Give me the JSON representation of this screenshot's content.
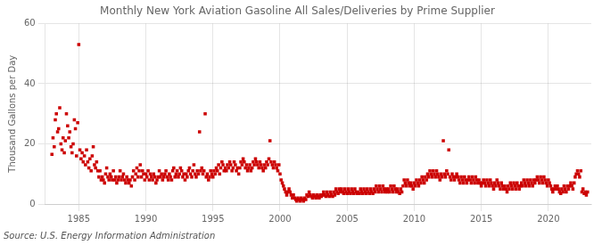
{
  "chart_data": {
    "type": "scatter",
    "title": "Monthly New York Aviation Gasoline All Sales/Deliveries by Prime Supplier",
    "y_label": "Thousand Gallons per Day",
    "annotation": "Source: U.S. Energy Information Administration",
    "color": "#cc0000",
    "marker": "square",
    "grid": true,
    "xlim": [
      1982.5,
      2023.2
    ],
    "ylim": [
      0,
      60
    ],
    "xticks": [
      1985,
      1990,
      1995,
      2000,
      2005,
      2010,
      2015,
      2020
    ],
    "yticks": [
      0,
      20,
      40,
      60
    ],
    "x": [
      1983.0,
      1983.08,
      1983.17,
      1983.25,
      1983.33,
      1983.42,
      1983.5,
      1983.58,
      1983.67,
      1983.75,
      1983.83,
      1983.92,
      1984.0,
      1984.08,
      1984.17,
      1984.25,
      1984.33,
      1984.42,
      1984.5,
      1984.58,
      1984.67,
      1984.75,
      1984.83,
      1984.92,
      1985.0,
      1985.08,
      1985.17,
      1985.25,
      1985.33,
      1985.42,
      1985.5,
      1985.58,
      1985.67,
      1985.75,
      1985.83,
      1985.92,
      1986.0,
      1986.08,
      1986.17,
      1986.25,
      1986.33,
      1986.42,
      1986.5,
      1986.58,
      1986.67,
      1986.75,
      1986.83,
      1986.92,
      1987.0,
      1987.08,
      1987.17,
      1987.25,
      1987.33,
      1987.42,
      1987.5,
      1987.58,
      1987.67,
      1987.75,
      1987.83,
      1987.92,
      1988.0,
      1988.08,
      1988.17,
      1988.25,
      1988.33,
      1988.42,
      1988.5,
      1988.58,
      1988.67,
      1988.75,
      1988.83,
      1988.92,
      1989.0,
      1989.08,
      1989.17,
      1989.25,
      1989.33,
      1989.42,
      1989.5,
      1989.58,
      1989.67,
      1989.75,
      1989.83,
      1989.92,
      1990.0,
      1990.08,
      1990.17,
      1990.25,
      1990.33,
      1990.42,
      1990.5,
      1990.58,
      1990.67,
      1990.75,
      1990.83,
      1990.92,
      1991.0,
      1991.08,
      1991.17,
      1991.25,
      1991.33,
      1991.42,
      1991.5,
      1991.58,
      1991.67,
      1991.75,
      1991.83,
      1991.92,
      1992.0,
      1992.08,
      1992.17,
      1992.25,
      1992.33,
      1992.42,
      1992.5,
      1992.58,
      1992.67,
      1992.75,
      1992.83,
      1992.92,
      1993.0,
      1993.08,
      1993.17,
      1993.25,
      1993.33,
      1993.42,
      1993.5,
      1993.58,
      1993.67,
      1993.75,
      1993.83,
      1993.92,
      1994.0,
      1994.08,
      1994.17,
      1994.25,
      1994.33,
      1994.42,
      1994.5,
      1994.58,
      1994.67,
      1994.75,
      1994.83,
      1994.92,
      1995.0,
      1995.08,
      1995.17,
      1995.25,
      1995.33,
      1995.42,
      1995.5,
      1995.58,
      1995.67,
      1995.75,
      1995.83,
      1995.92,
      1996.0,
      1996.08,
      1996.17,
      1996.25,
      1996.33,
      1996.42,
      1996.5,
      1996.58,
      1996.67,
      1996.75,
      1996.83,
      1996.92,
      1997.0,
      1997.08,
      1997.17,
      1997.25,
      1997.33,
      1997.42,
      1997.5,
      1997.58,
      1997.67,
      1997.75,
      1997.83,
      1997.92,
      1998.0,
      1998.08,
      1998.17,
      1998.25,
      1998.33,
      1998.42,
      1998.5,
      1998.58,
      1998.67,
      1998.75,
      1998.83,
      1998.92,
      1999.0,
      1999.08,
      1999.17,
      1999.25,
      1999.33,
      1999.42,
      1999.5,
      1999.58,
      1999.67,
      1999.75,
      1999.83,
      1999.92,
      2000.0,
      2000.08,
      2000.17,
      2000.25,
      2000.33,
      2000.42,
      2000.5,
      2000.58,
      2000.67,
      2000.75,
      2000.83,
      2000.92,
      2001.0,
      2001.08,
      2001.17,
      2001.25,
      2001.33,
      2001.42,
      2001.5,
      2001.58,
      2001.67,
      2001.75,
      2001.83,
      2001.92,
      2002.0,
      2002.08,
      2002.17,
      2002.25,
      2002.33,
      2002.42,
      2002.5,
      2002.58,
      2002.67,
      2002.75,
      2002.83,
      2002.92,
      2003.0,
      2003.08,
      2003.17,
      2003.25,
      2003.33,
      2003.42,
      2003.5,
      2003.58,
      2003.67,
      2003.75,
      2003.83,
      2003.92,
      2004.0,
      2004.08,
      2004.17,
      2004.25,
      2004.33,
      2004.42,
      2004.5,
      2004.58,
      2004.67,
      2004.75,
      2004.83,
      2004.92,
      2005.0,
      2005.08,
      2005.17,
      2005.25,
      2005.33,
      2005.42,
      2005.5,
      2005.58,
      2005.67,
      2005.75,
      2005.83,
      2005.92,
      2006.0,
      2006.08,
      2006.17,
      2006.25,
      2006.33,
      2006.42,
      2006.5,
      2006.58,
      2006.67,
      2006.75,
      2006.83,
      2006.92,
      2007.0,
      2007.08,
      2007.17,
      2007.25,
      2007.33,
      2007.42,
      2007.5,
      2007.58,
      2007.67,
      2007.75,
      2007.83,
      2007.92,
      2008.0,
      2008.08,
      2008.17,
      2008.25,
      2008.33,
      2008.42,
      2008.5,
      2008.58,
      2008.67,
      2008.75,
      2008.83,
      2008.92,
      2009.0,
      2009.08,
      2009.17,
      2009.25,
      2009.33,
      2009.42,
      2009.5,
      2009.58,
      2009.67,
      2009.75,
      2009.83,
      2009.92,
      2010.0,
      2010.08,
      2010.17,
      2010.25,
      2010.33,
      2010.42,
      2010.5,
      2010.58,
      2010.67,
      2010.75,
      2010.83,
      2010.92,
      2011.0,
      2011.08,
      2011.17,
      2011.25,
      2011.33,
      2011.42,
      2011.5,
      2011.58,
      2011.67,
      2011.75,
      2011.83,
      2011.92,
      2012.0,
      2012.08,
      2012.17,
      2012.25,
      2012.33,
      2012.42,
      2012.5,
      2012.58,
      2012.67,
      2012.75,
      2012.83,
      2012.92,
      2013.0,
      2013.08,
      2013.17,
      2013.25,
      2013.33,
      2013.42,
      2013.5,
      2013.58,
      2013.67,
      2013.75,
      2013.83,
      2013.92,
      2014.0,
      2014.08,
      2014.17,
      2014.25,
      2014.33,
      2014.42,
      2014.5,
      2014.58,
      2014.67,
      2014.75,
      2014.83,
      2014.92,
      2015.0,
      2015.08,
      2015.17,
      2015.25,
      2015.33,
      2015.42,
      2015.5,
      2015.58,
      2015.67,
      2015.75,
      2015.83,
      2015.92,
      2016.0,
      2016.08,
      2016.17,
      2016.25,
      2016.33,
      2016.42,
      2016.5,
      2016.58,
      2016.67,
      2016.75,
      2016.83,
      2016.92,
      2017.0,
      2017.08,
      2017.17,
      2017.25,
      2017.33,
      2017.42,
      2017.5,
      2017.58,
      2017.67,
      2017.75,
      2017.83,
      2017.92,
      2018.0,
      2018.08,
      2018.17,
      2018.25,
      2018.33,
      2018.42,
      2018.5,
      2018.58,
      2018.67,
      2018.75,
      2018.83,
      2018.92,
      2019.0,
      2019.08,
      2019.17,
      2019.25,
      2019.33,
      2019.42,
      2019.5,
      2019.58,
      2019.67,
      2019.75,
      2019.83,
      2019.92,
      2020.0,
      2020.08,
      2020.17,
      2020.25,
      2020.33,
      2020.42,
      2020.5,
      2020.58,
      2020.67,
      2020.75,
      2020.83,
      2020.92,
      2021.0,
      2021.08,
      2021.17,
      2021.25,
      2021.33,
      2021.42,
      2021.5,
      2021.58,
      2021.67,
      2021.75,
      2021.83,
      2021.92,
      2022.0,
      2022.08,
      2022.17,
      2022.25,
      2022.33,
      2022.42,
      2022.5,
      2022.58,
      2022.67,
      2022.75,
      2022.83,
      2022.92
    ],
    "values": [
      16.5,
      22.0,
      19.0,
      28.0,
      30.0,
      24.0,
      25.0,
      32.0,
      20.0,
      18.0,
      22.0,
      17.0,
      21.0,
      30.0,
      26.0,
      22.0,
      24.0,
      19.0,
      17.0,
      20.0,
      28.0,
      25.0,
      16.0,
      27.0,
      53.0,
      18.0,
      15.0,
      17.0,
      14.0,
      16.0,
      13.0,
      18.0,
      14.0,
      12.0,
      15.0,
      11.0,
      16.0,
      19.0,
      13.0,
      12.0,
      14.0,
      11.0,
      9.0,
      11.0,
      8.0,
      9.0,
      8.0,
      7.0,
      10.0,
      12.0,
      9.0,
      8.0,
      10.0,
      9.0,
      8.0,
      11.0,
      8.0,
      9.0,
      7.0,
      8.0,
      9.0,
      11.0,
      8.0,
      9.0,
      10.0,
      8.0,
      7.0,
      9.0,
      8.0,
      7.0,
      8.0,
      6.0,
      9.0,
      11.0,
      8.0,
      10.0,
      12.0,
      9.0,
      11.0,
      13.0,
      9.0,
      11.0,
      10.0,
      8.0,
      10.0,
      9.0,
      11.0,
      8.0,
      10.0,
      9.0,
      8.0,
      10.0,
      9.0,
      7.0,
      8.0,
      9.0,
      11.0,
      9.0,
      10.0,
      8.0,
      9.0,
      10.0,
      11.0,
      9.0,
      8.0,
      10.0,
      9.0,
      8.0,
      11.0,
      12.0,
      9.0,
      10.0,
      11.0,
      9.0,
      10.0,
      12.0,
      11.0,
      9.0,
      10.0,
      8.0,
      10.0,
      9.0,
      11.0,
      12.0,
      10.0,
      9.0,
      11.0,
      13.0,
      10.0,
      9.0,
      11.0,
      10.0,
      24.0,
      11.0,
      12.0,
      10.0,
      11.0,
      30.0,
      9.0,
      10.0,
      8.0,
      9.0,
      11.0,
      10.0,
      9.0,
      11.0,
      10.0,
      12.0,
      11.0,
      13.0,
      10.0,
      12.0,
      14.0,
      13.0,
      11.0,
      12.0,
      11.0,
      13.0,
      12.0,
      14.0,
      13.0,
      11.0,
      12.0,
      14.0,
      13.0,
      11.0,
      12.0,
      10.0,
      12.0,
      14.0,
      13.0,
      15.0,
      14.0,
      12.0,
      13.0,
      11.0,
      12.0,
      13.0,
      11.0,
      12.0,
      14.0,
      13.0,
      15.0,
      14.0,
      13.0,
      12.0,
      14.0,
      13.0,
      12.0,
      11.0,
      13.0,
      12.0,
      14.0,
      13.0,
      15.0,
      21.0,
      14.0,
      13.0,
      12.0,
      14.0,
      13.0,
      12.0,
      11.0,
      13.0,
      10.0,
      8.0,
      7.0,
      6.0,
      5.0,
      4.0,
      3.0,
      4.0,
      5.0,
      4.0,
      3.0,
      2.0,
      3.0,
      2.0,
      1.5,
      1.0,
      2.0,
      1.5,
      1.0,
      2.0,
      1.5,
      1.0,
      2.0,
      1.5,
      3.0,
      2.5,
      4.0,
      3.0,
      2.5,
      2.0,
      3.0,
      2.5,
      2.0,
      3.0,
      2.5,
      2.0,
      3.0,
      2.5,
      3.0,
      4.0,
      3.0,
      2.5,
      4.0,
      3.0,
      2.5,
      4.0,
      3.0,
      2.5,
      4.0,
      3.0,
      5.0,
      4.0,
      3.5,
      5.0,
      4.0,
      5.0,
      4.0,
      3.5,
      5.0,
      4.0,
      3.5,
      5.0,
      4.0,
      3.5,
      5.0,
      4.0,
      3.5,
      5.0,
      4.0,
      3.5,
      4.0,
      3.5,
      5.0,
      4.0,
      3.5,
      5.0,
      4.0,
      3.5,
      5.0,
      4.0,
      3.5,
      5.0,
      4.0,
      3.5,
      5.0,
      4.0,
      6.0,
      5.0,
      4.0,
      6.0,
      5.0,
      4.0,
      6.0,
      5.0,
      4.0,
      5.0,
      4.0,
      5.0,
      4.0,
      6.0,
      5.0,
      4.0,
      6.0,
      5.0,
      4.0,
      5.0,
      4.0,
      3.5,
      5.0,
      4.0,
      6.0,
      8.0,
      7.0,
      6.0,
      8.0,
      7.0,
      6.0,
      7.0,
      6.0,
      5.0,
      7.0,
      6.0,
      8.0,
      7.0,
      6.0,
      8.0,
      7.0,
      9.0,
      8.0,
      7.0,
      9.0,
      8.0,
      10.0,
      9.0,
      11.0,
      10.0,
      9.0,
      11.0,
      10.0,
      9.0,
      11.0,
      10.0,
      9.0,
      8.0,
      10.0,
      9.0,
      21.0,
      10.0,
      9.0,
      11.0,
      10.0,
      18.0,
      9.0,
      8.0,
      10.0,
      9.0,
      8.0,
      9.0,
      10.0,
      9.0,
      8.0,
      7.0,
      9.0,
      8.0,
      7.0,
      9.0,
      8.0,
      7.0,
      8.0,
      9.0,
      8.0,
      7.0,
      9.0,
      8.0,
      7.0,
      9.0,
      8.0,
      7.0,
      8.0,
      7.0,
      6.0,
      7.0,
      8.0,
      7.0,
      6.0,
      8.0,
      7.0,
      6.0,
      8.0,
      7.0,
      6.0,
      5.0,
      7.0,
      6.0,
      8.0,
      7.0,
      6.0,
      5.0,
      7.0,
      6.0,
      5.0,
      6.0,
      5.0,
      4.0,
      6.0,
      5.0,
      7.0,
      6.0,
      5.0,
      7.0,
      6.0,
      5.0,
      7.0,
      6.0,
      5.0,
      6.0,
      7.0,
      6.0,
      8.0,
      7.0,
      6.0,
      8.0,
      7.0,
      6.0,
      8.0,
      7.0,
      6.0,
      8.0,
      7.0,
      8.0,
      9.0,
      8.0,
      7.0,
      9.0,
      8.0,
      7.0,
      9.0,
      8.0,
      7.0,
      6.0,
      8.0,
      7.0,
      6.0,
      5.0,
      4.0,
      5.0,
      6.0,
      5.0,
      6.0,
      5.0,
      4.0,
      3.5,
      5.0,
      4.0,
      6.0,
      5.0,
      4.0,
      6.0,
      5.0,
      6.0,
      7.0,
      6.0,
      5.0,
      7.0,
      9.0,
      10.0,
      11.0,
      10.0,
      9.0,
      11.0,
      4.0,
      5.0,
      3.5,
      4.0,
      3.0,
      4.0
    ]
  }
}
